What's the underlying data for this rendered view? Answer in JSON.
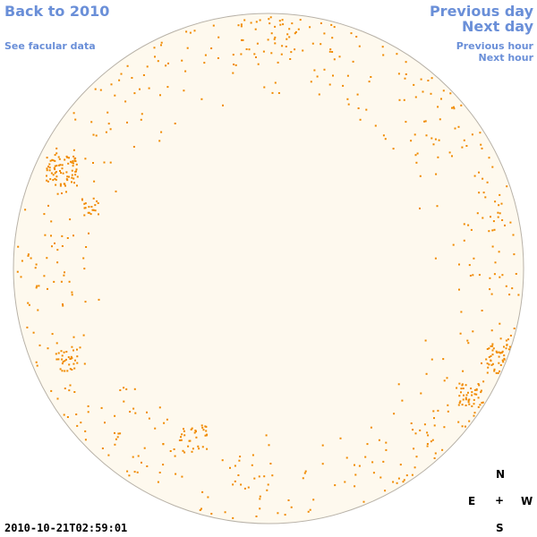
{
  "nav": {
    "back": "Back to 2010",
    "facular": "See facular data",
    "previous_day": "Previous day",
    "next_day": "Next day",
    "previous_hour": "Previous hour",
    "next_hour": "Next hour"
  },
  "timestamp": "2010-10-21T02:59:01",
  "compass": {
    "north": "N",
    "east": "E",
    "center": "+",
    "west": "W",
    "south": "S"
  },
  "colors": {
    "link": "#6a8fd8",
    "disk_fill": "#fef9ee",
    "disk_border": "#b8b2a8",
    "feature": "#f08a00"
  }
}
